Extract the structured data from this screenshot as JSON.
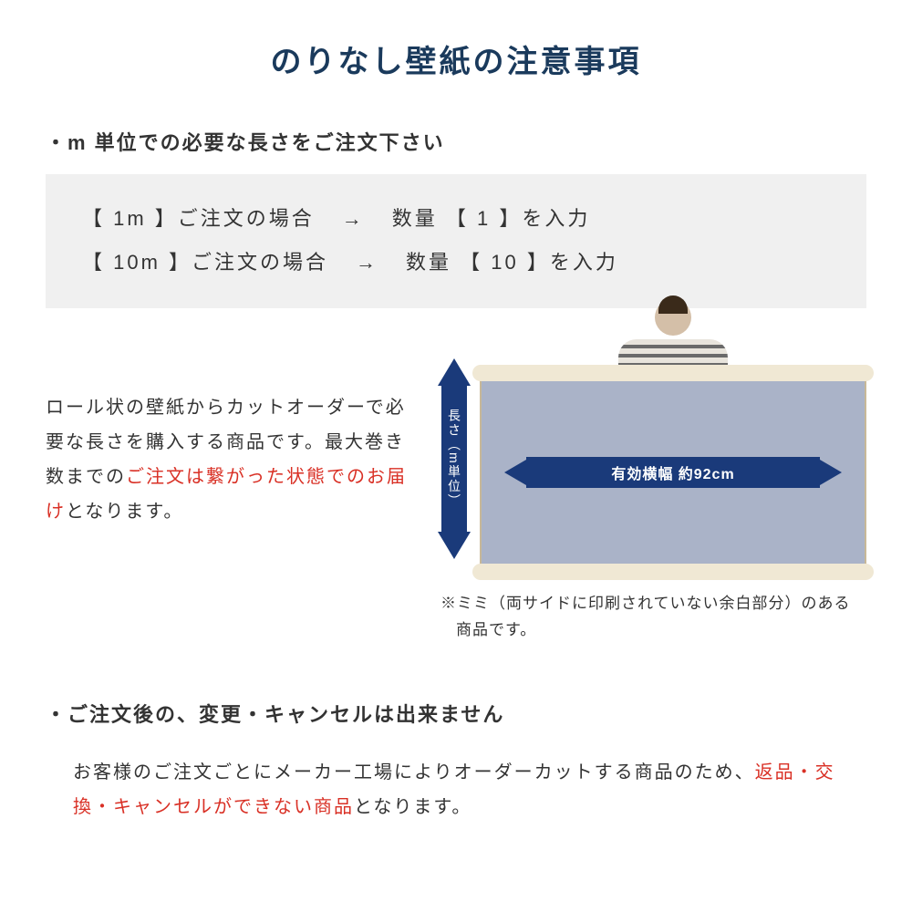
{
  "colors": {
    "title": "#1a3a5c",
    "text": "#333333",
    "emphasis": "#d93025",
    "arrow": "#1a3a7a",
    "box_bg": "#f0f0f0",
    "wallpaper_fill": "#aab3c8",
    "roll_edge": "#f0e8d4"
  },
  "title": "のりなし壁紙の注意事項",
  "section1": {
    "bullet": "・m 単位での必要な長さをご注文下さい",
    "examples": [
      {
        "left": "【 1m 】ご注文の場合",
        "arrow": "→",
        "right": "数量 【 1 】を入力"
      },
      {
        "left": "【 10m 】ご注文の場合",
        "arrow": "→",
        "right": "数量 【 10 】を入力"
      }
    ]
  },
  "description": {
    "pre": "ロール状の壁紙からカットオーダーで必要な長さを購入する商品です。最大巻き数までの",
    "red": "ご注文は繋がった状態でのお届け",
    "post": "となります。"
  },
  "illustration": {
    "vertical_label": "長さ（m単位）",
    "width_label": "有効横幅 約92cm",
    "mimi_note": "※ミミ（両サイドに印刷されていない余白部分）のある商品です。"
  },
  "section2": {
    "bullet": "・ご注文後の、変更・キャンセルは出来ません",
    "pre": "お客様のご注文ごとにメーカー工場によりオーダーカットする商品のため、",
    "red": "返品・交換・キャンセルができない商品",
    "post": "となります。"
  }
}
